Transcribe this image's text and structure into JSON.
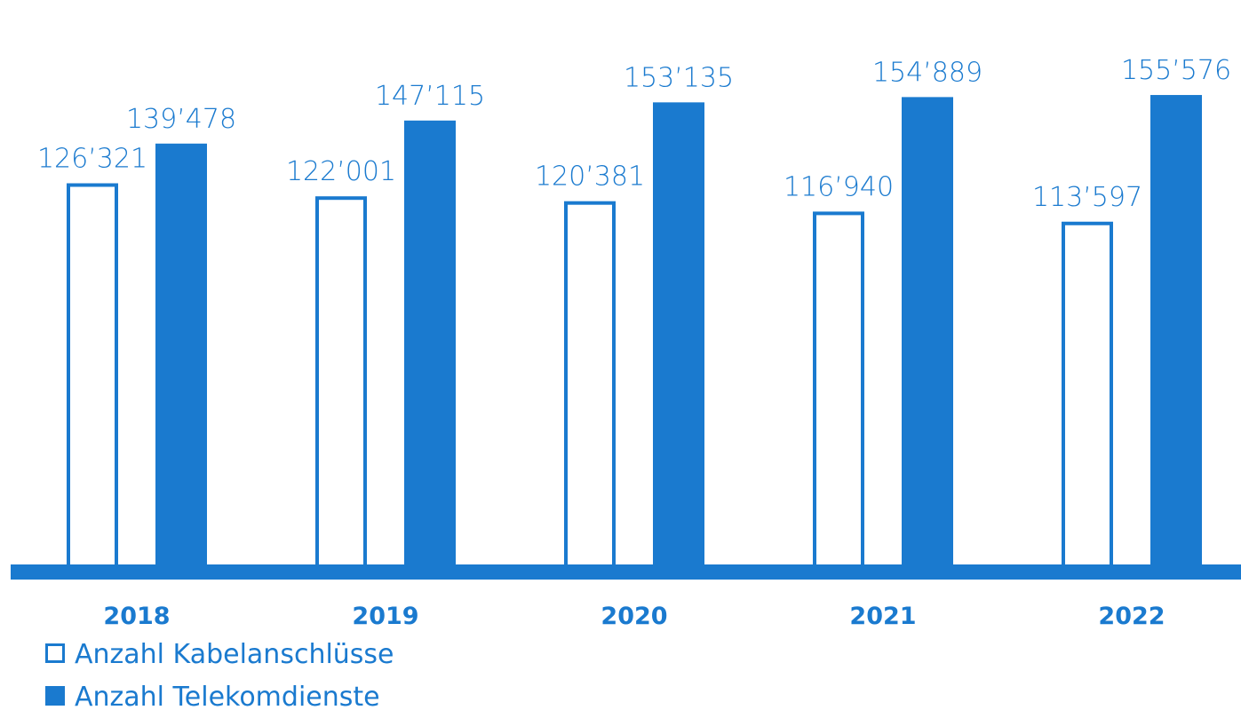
{
  "chart_data": {
    "type": "bar",
    "categories": [
      "2018",
      "2019",
      "2020",
      "2021",
      "2022"
    ],
    "series": [
      {
        "name": "Anzahl Kabelanschlüsse",
        "values": [
          126321,
          122001,
          120381,
          116940,
          113597
        ],
        "labels": [
          "126’321",
          "122’001",
          "120’381",
          "116’940",
          "113’597"
        ],
        "style": "outline"
      },
      {
        "name": "Anzahl Telekomdienste",
        "values": [
          139478,
          147115,
          153135,
          154889,
          155576
        ],
        "labels": [
          "139’478",
          "147’115",
          "153’135",
          "154’889",
          "155’576"
        ],
        "style": "filled"
      }
    ],
    "title": "",
    "xlabel": "",
    "ylabel": "",
    "ylim": [
      0,
      160000
    ],
    "grid": false,
    "legend": "bottom-left"
  },
  "colors": {
    "accent": "#1a7acf",
    "background": "#ffffff"
  }
}
